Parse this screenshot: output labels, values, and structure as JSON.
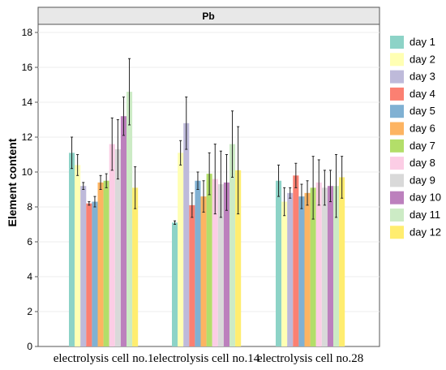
{
  "chart_data": {
    "type": "bar",
    "title": "Pb",
    "ylabel": "Element content",
    "xlabel": "",
    "ylim": [
      0,
      18
    ],
    "yticks": [
      0,
      2,
      4,
      6,
      8,
      10,
      12,
      14,
      16,
      18
    ],
    "grid": true,
    "legend_position": "right",
    "categories": [
      "electrolysis cell no.1",
      "electrolysis cell no.14",
      "electrolysis cell no.28"
    ],
    "series": [
      {
        "name": "day 1",
        "color": "#8dd3c7",
        "values": [
          11.1,
          7.1,
          9.5
        ],
        "errors": [
          0.9,
          0.1,
          0.9
        ]
      },
      {
        "name": "day 2",
        "color": "#ffffb3",
        "values": [
          10.4,
          11.1,
          8.3
        ],
        "errors": [
          0.6,
          0.7,
          0.8
        ]
      },
      {
        "name": "day 3",
        "color": "#bebada",
        "values": [
          9.2,
          12.8,
          8.8
        ],
        "errors": [
          0.2,
          1.5,
          0.3
        ]
      },
      {
        "name": "day 4",
        "color": "#fb8072",
        "values": [
          8.2,
          8.1,
          9.8
        ],
        "errors": [
          0.1,
          0.7,
          0.7
        ]
      },
      {
        "name": "day 5",
        "color": "#80b1d3",
        "values": [
          8.3,
          9.5,
          8.6
        ],
        "errors": [
          0.3,
          0.5,
          0.7
        ]
      },
      {
        "name": "day 6",
        "color": "#fdb462",
        "values": [
          9.4,
          8.6,
          8.8
        ],
        "errors": [
          0.4,
          0.9,
          0.7
        ]
      },
      {
        "name": "day 7",
        "color": "#b3de69",
        "values": [
          9.5,
          9.9,
          9.1
        ],
        "errors": [
          0.4,
          1.2,
          1.8
        ]
      },
      {
        "name": "day 8",
        "color": "#fccde5",
        "values": [
          11.6,
          9.6,
          9.4
        ],
        "errors": [
          1.5,
          2.0,
          1.3
        ]
      },
      {
        "name": "day 9",
        "color": "#d9d9d9",
        "values": [
          11.3,
          9.3,
          9.1
        ],
        "errors": [
          1.7,
          1.9,
          1.0
        ]
      },
      {
        "name": "day 10",
        "color": "#bc80bd",
        "values": [
          13.2,
          9.4,
          9.2
        ],
        "errors": [
          1.1,
          1.6,
          0.9
        ]
      },
      {
        "name": "day 11",
        "color": "#ccebc5",
        "values": [
          14.6,
          11.6,
          9.2
        ],
        "errors": [
          1.9,
          1.9,
          1.8
        ]
      },
      {
        "name": "day 12",
        "color": "#ffed6f",
        "values": [
          9.1,
          10.1,
          9.7
        ],
        "errors": [
          1.2,
          2.5,
          1.2
        ]
      }
    ]
  }
}
